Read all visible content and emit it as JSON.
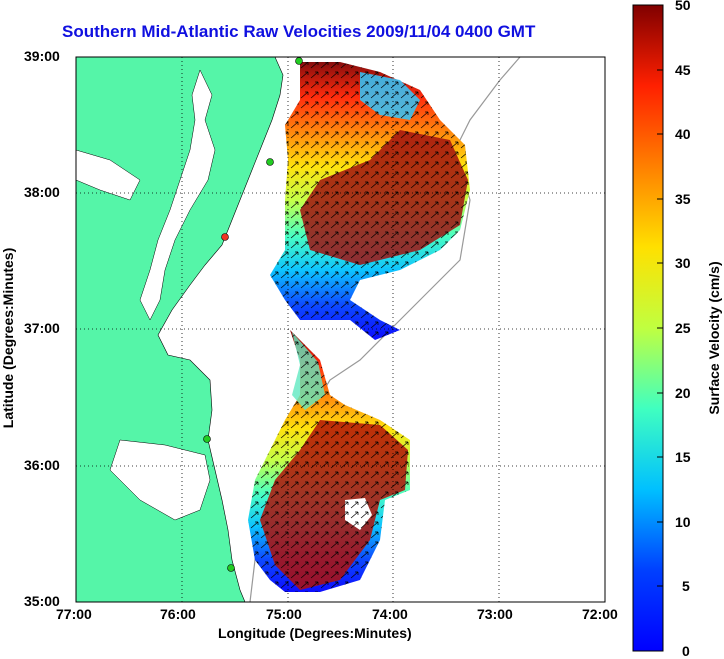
{
  "title": "Southern Mid-Atlantic Raw Velocities 2009/11/04 0400 GMT",
  "map": {
    "xlabel": "Longitude (Degrees:Minutes)",
    "ylabel": "Latitude (Degrees:Minutes)",
    "x_ticks": [
      "77:00",
      "76:00",
      "75:00",
      "74:00",
      "73:00",
      "72:00"
    ],
    "y_ticks": [
      "39:00",
      "38:00",
      "37:00",
      "36:00",
      "35:00"
    ],
    "lon_range": [
      -77,
      -72
    ],
    "lat_range": [
      35,
      39
    ],
    "land_color": "#55f5a8",
    "gridlines": "dotted"
  },
  "colorbar": {
    "label": "Surface Velocity (cm/s)",
    "ticks": [
      "0",
      "5",
      "10",
      "15",
      "20",
      "25",
      "30",
      "35",
      "40",
      "45",
      "50"
    ],
    "range": [
      0,
      50
    ],
    "colormap": "jet"
  }
}
